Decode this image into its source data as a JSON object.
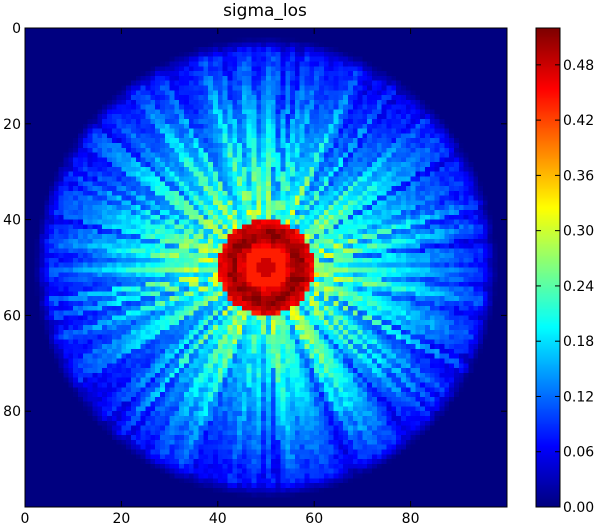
{
  "chart_data": {
    "type": "heatmap",
    "title": "sigma_los",
    "xlabel": "",
    "ylabel": "",
    "colormap": "jet",
    "grid": false,
    "image_extent": {
      "x": [
        0,
        100
      ],
      "y": [
        0,
        100
      ]
    },
    "y_axis_inverted": true,
    "x_ticks": [
      0,
      20,
      40,
      60,
      80
    ],
    "y_ticks": [
      0,
      20,
      40,
      60,
      80
    ],
    "x_tick_labels": [
      "0",
      "20",
      "40",
      "60",
      "80"
    ],
    "y_tick_labels": [
      "0",
      "20",
      "40",
      "60",
      "80"
    ],
    "colorbar": {
      "range": [
        0.0,
        0.52
      ],
      "ticks": [
        0.0,
        0.06,
        0.12,
        0.18,
        0.24,
        0.3,
        0.36,
        0.42,
        0.48
      ],
      "tick_labels": [
        "0.00",
        "0.06",
        "0.12",
        "0.18",
        "0.24",
        "0.30",
        "0.36",
        "0.42",
        "0.48"
      ]
    },
    "structure": {
      "center": [
        50,
        50
      ],
      "central_value": 0.44,
      "ring_radius": 7,
      "ring_peak_value": 0.52,
      "halo_value": 0.24,
      "outer_cutoff_radius": 48,
      "background_value": 0.0
    }
  }
}
